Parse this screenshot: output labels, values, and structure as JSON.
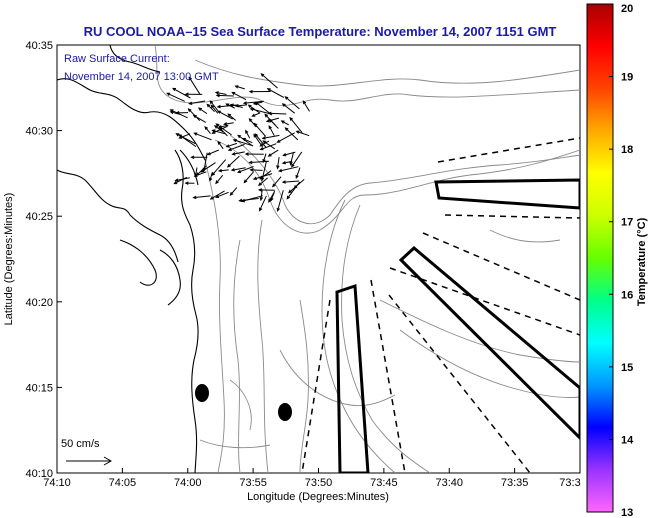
{
  "title": "RU COOL  NOAA–15  Sea Surface Temperature:  November 14, 2007 1151 GMT",
  "current_note": {
    "line1": "Raw Surface Current:",
    "line2": "November 14, 2007 13:00 GMT"
  },
  "scale_label": "50 cm/s",
  "x_axis": {
    "label": "Longitude (Degrees:Minutes)",
    "ticks": [
      "74:10",
      "74:05",
      "74:00",
      "73:55",
      "73:50",
      "73:45",
      "73:40",
      "73:35",
      "73:3"
    ]
  },
  "y_axis": {
    "label": "Latitude (Degrees:Minutes)",
    "ticks": [
      "40:35",
      "40:30",
      "40:25",
      "40:20",
      "40:15",
      "40:10"
    ]
  },
  "colorbar": {
    "label": "Temperature (°C)",
    "ticks": [
      "20",
      "19",
      "18",
      "17",
      "16",
      "15",
      "14",
      "13"
    ],
    "range": [
      13,
      20
    ],
    "colors": [
      "#ff66ff",
      "#9933ff",
      "#0000ff",
      "#0099ff",
      "#00ffff",
      "#00ff88",
      "#66ff00",
      "#ccff00",
      "#ffff00",
      "#ffaa00",
      "#ff4400",
      "#ff0000",
      "#aa0000"
    ]
  },
  "map_features": {
    "current_vectors": "dense arrows near harbor entrance",
    "markers": 2,
    "outlined_boxes": 3
  }
}
